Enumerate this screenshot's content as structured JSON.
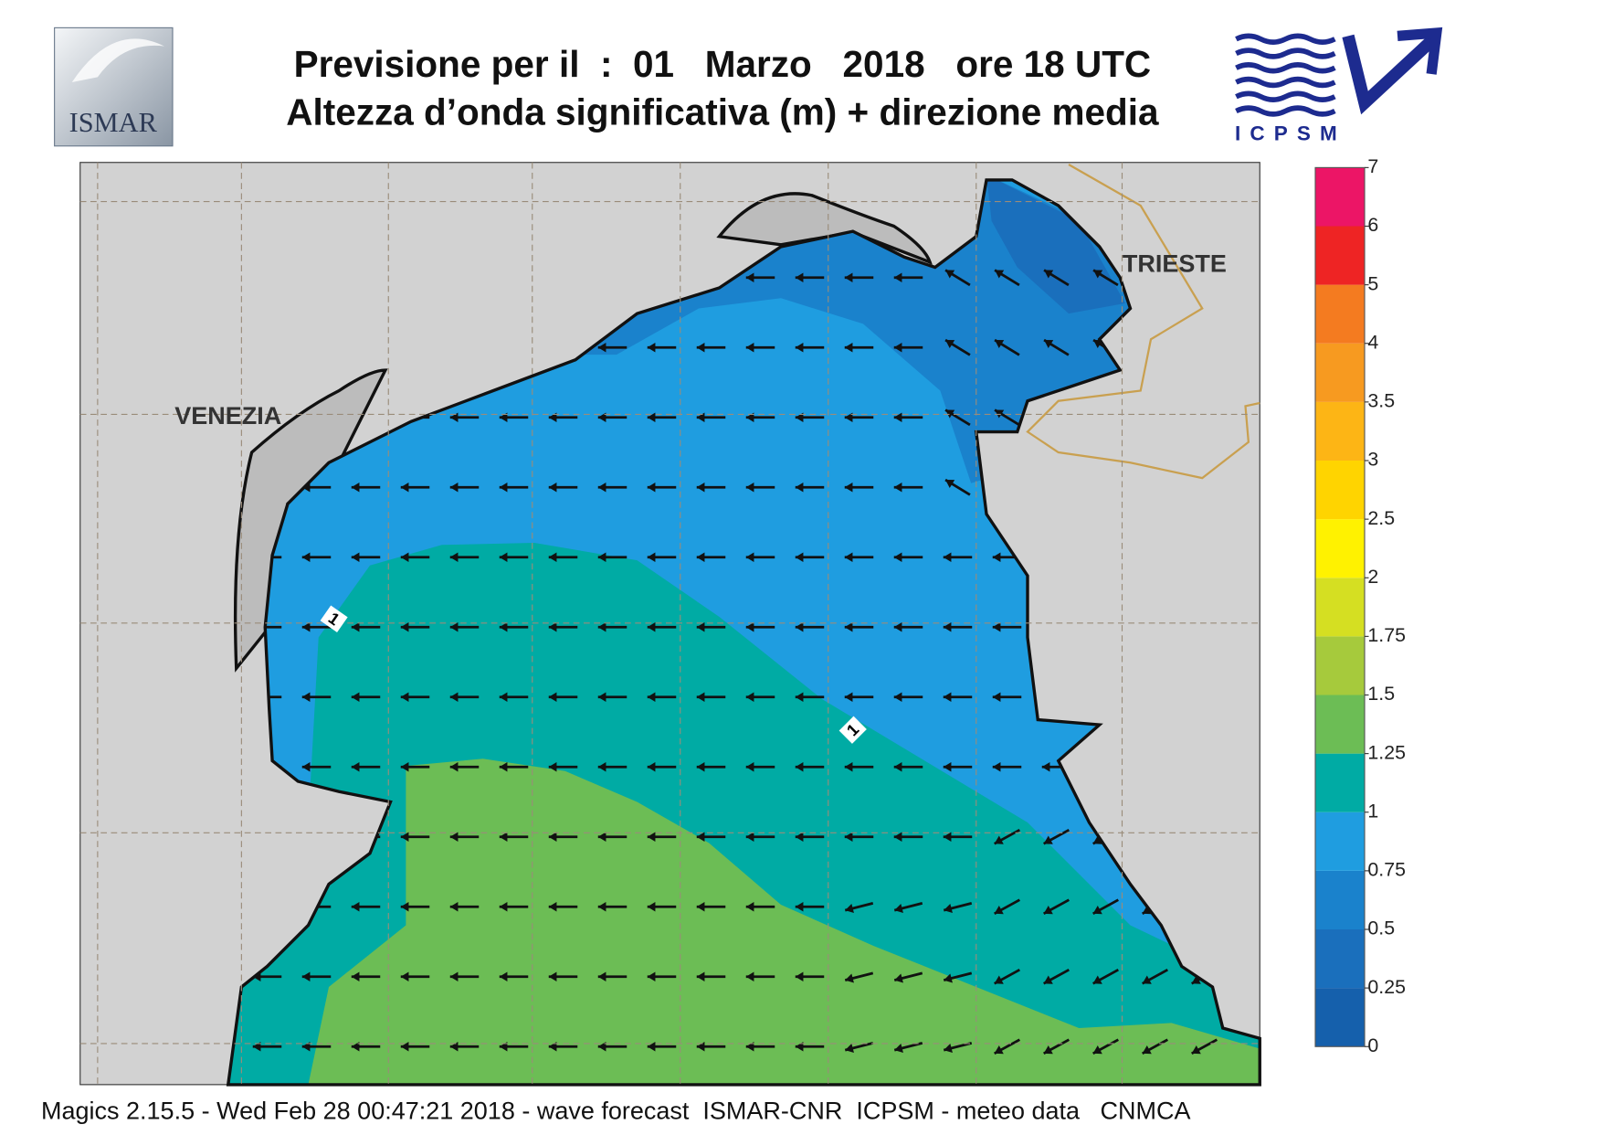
{
  "header": {
    "title_line1": "Previsione per il  :  01   Marzo   2018   ore 18 UTC",
    "title_line2": "Altezza d’onda significativa (m) + direzione media",
    "logo_left": "ISMAR",
    "logo_right": "ICPSM"
  },
  "map": {
    "labels": [
      "VENEZIA",
      "TRIESTE"
    ],
    "contour_labels": [
      "1",
      "1"
    ]
  },
  "legend": {
    "levels": [
      0,
      0.25,
      0.5,
      0.75,
      1,
      1.25,
      1.5,
      1.75,
      2,
      2.5,
      3,
      3.5,
      4,
      5,
      6,
      7
    ],
    "colors": [
      "#1560ac",
      "#1a6fbc",
      "#1a82cc",
      "#1f9de0",
      "#00aba4",
      "#6cbd55",
      "#a6ca3c",
      "#d5df22",
      "#fff200",
      "#ffd400",
      "#fdb515",
      "#f79a20",
      "#f47b20",
      "#ee2424",
      "#ec1566"
    ]
  },
  "footer": "Magics 2.15.5 - Wed Feb 28 00:47:21 2018 - wave forecast  ISMAR-CNR  ICPSM - meteo data   CNMCA"
}
